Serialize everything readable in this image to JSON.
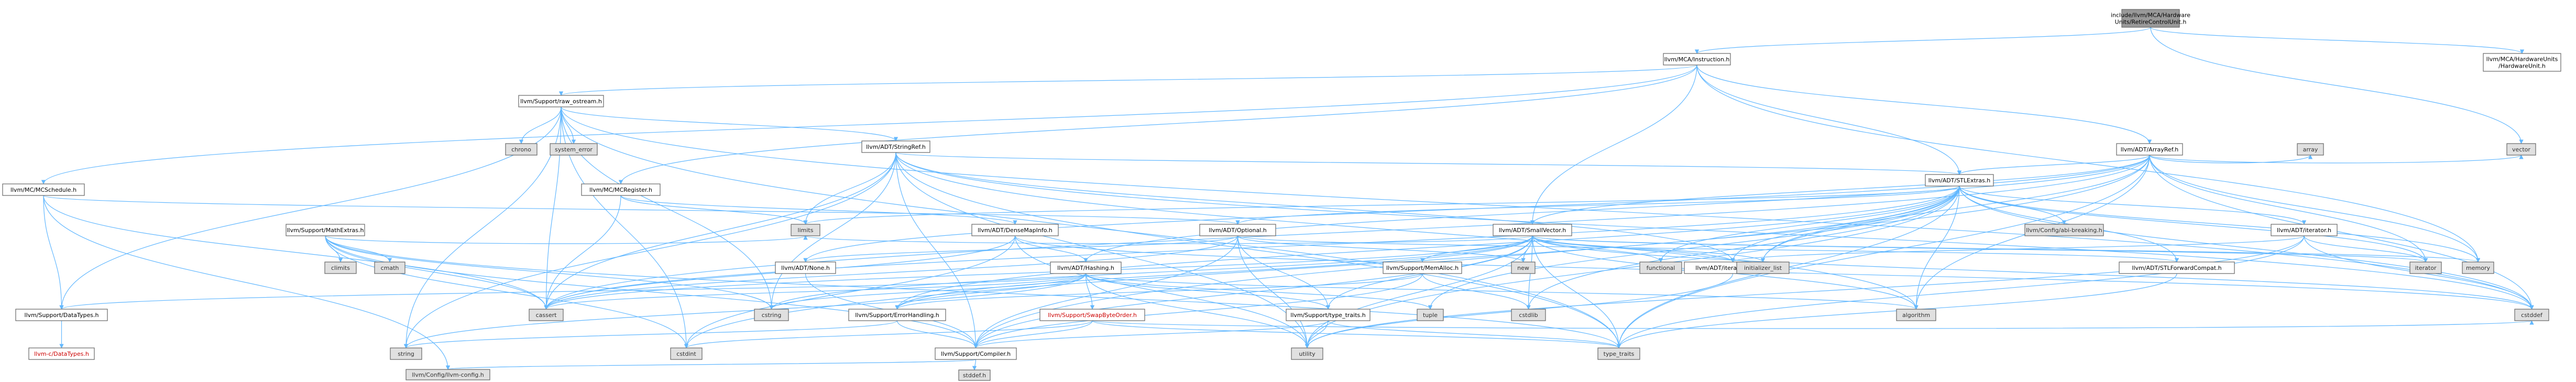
{
  "graph": {
    "kind": "include-dependency-graph",
    "colors": {
      "edge": "#63b8ff",
      "root_fill": "#999999",
      "node_fill": "#ffffff",
      "system_fill": "#e0e0e0",
      "border": "#666666",
      "red_text": "#cc0000"
    },
    "nodes": [
      {
        "id": "root",
        "lines": [
          "include/llvm/MCA/Hardware",
          "Units/RetireControlUnit.h"
        ],
        "style": "root"
      },
      {
        "id": "instruction",
        "lines": [
          "llvm/MCA/Instruction.h"
        ]
      },
      {
        "id": "hwunit",
        "lines": [
          "llvm/MCA/HardwareUnits",
          "/HardwareUnit.h"
        ]
      },
      {
        "id": "raw_ostream",
        "lines": [
          "llvm/Support/raw_ostream.h"
        ]
      },
      {
        "id": "arrayref",
        "lines": [
          "llvm/ADT/ArrayRef.h"
        ]
      },
      {
        "id": "stringref",
        "lines": [
          "llvm/ADT/StringRef.h"
        ]
      },
      {
        "id": "stlextras",
        "lines": [
          "llvm/ADT/STLExtras.h"
        ]
      },
      {
        "id": "mcschedule",
        "lines": [
          "llvm/MC/MCSchedule.h"
        ]
      },
      {
        "id": "mcregister",
        "lines": [
          "llvm/MC/MCRegister.h"
        ]
      },
      {
        "id": "smallvector",
        "lines": [
          "llvm/ADT/SmallVector.h"
        ]
      },
      {
        "id": "mathextras",
        "lines": [
          "llvm/Support/MathExtras.h"
        ]
      },
      {
        "id": "densemapinfo",
        "lines": [
          "llvm/ADT/DenseMapInfo.h"
        ]
      },
      {
        "id": "optional",
        "lines": [
          "llvm/ADT/Optional.h"
        ]
      },
      {
        "id": "iterator",
        "lines": [
          "llvm/ADT/iterator.h"
        ]
      },
      {
        "id": "none",
        "lines": [
          "llvm/ADT/None.h"
        ]
      },
      {
        "id": "hashing",
        "lines": [
          "llvm/ADT/Hashing.h"
        ]
      },
      {
        "id": "memalloc",
        "lines": [
          "llvm/Support/MemAlloc.h"
        ]
      },
      {
        "id": "iterator_range",
        "lines": [
          "llvm/ADT/iterator_range.h"
        ]
      },
      {
        "id": "stlforward",
        "lines": [
          "llvm/ADT/STLForwardCompat.h"
        ]
      },
      {
        "id": "datatypes_s",
        "lines": [
          "llvm/Support/DataTypes.h"
        ]
      },
      {
        "id": "errorhandling",
        "lines": [
          "llvm/Support/ErrorHandling.h"
        ]
      },
      {
        "id": "swapbyteorder",
        "lines": [
          "llvm/Support/SwapByteOrder.h"
        ],
        "style": "red"
      },
      {
        "id": "type_traits_s",
        "lines": [
          "llvm/Support/type_traits.h"
        ]
      },
      {
        "id": "compiler",
        "lines": [
          "llvm/Support/Compiler.h"
        ]
      },
      {
        "id": "c_datatypes",
        "lines": [
          "llvm-c/DataTypes.h"
        ],
        "style": "red"
      },
      {
        "id": "llvm_config",
        "lines": [
          "llvm/Config/llvm-config.h"
        ],
        "style": "sys"
      },
      {
        "id": "abi_breaking",
        "lines": [
          "llvm/Config/abi-breaking.h"
        ],
        "style": "sys"
      },
      {
        "id": "chrono",
        "lines": [
          "chrono"
        ],
        "style": "sys"
      },
      {
        "id": "system_error",
        "lines": [
          "system_error"
        ],
        "style": "sys"
      },
      {
        "id": "array",
        "lines": [
          "array"
        ],
        "style": "sys"
      },
      {
        "id": "vector",
        "lines": [
          "vector"
        ],
        "style": "sys"
      },
      {
        "id": "climits",
        "lines": [
          "climits"
        ],
        "style": "sys"
      },
      {
        "id": "cmath",
        "lines": [
          "cmath"
        ],
        "style": "sys"
      },
      {
        "id": "limits",
        "lines": [
          "limits"
        ],
        "style": "sys"
      },
      {
        "id": "new",
        "lines": [
          "new"
        ],
        "style": "sys"
      },
      {
        "id": "functional",
        "lines": [
          "functional"
        ],
        "style": "sys"
      },
      {
        "id": "initializer_list",
        "lines": [
          "initializer_list"
        ],
        "style": "sys"
      },
      {
        "id": "iterator_s",
        "lines": [
          "iterator"
        ],
        "style": "sys"
      },
      {
        "id": "memory",
        "lines": [
          "memory"
        ],
        "style": "sys"
      },
      {
        "id": "cstring",
        "lines": [
          "cstring"
        ],
        "style": "sys"
      },
      {
        "id": "cassert",
        "lines": [
          "cassert"
        ],
        "style": "sys"
      },
      {
        "id": "tuple",
        "lines": [
          "tuple"
        ],
        "style": "sys"
      },
      {
        "id": "cstdlib",
        "lines": [
          "cstdlib"
        ],
        "style": "sys"
      },
      {
        "id": "algorithm",
        "lines": [
          "algorithm"
        ],
        "style": "sys"
      },
      {
        "id": "string",
        "lines": [
          "string"
        ],
        "style": "sys"
      },
      {
        "id": "cstdint",
        "lines": [
          "cstdint"
        ],
        "style": "sys"
      },
      {
        "id": "utility",
        "lines": [
          "utility"
        ],
        "style": "sys"
      },
      {
        "id": "type_traits",
        "lines": [
          "type_traits"
        ],
        "style": "sys"
      },
      {
        "id": "cstddef",
        "lines": [
          "cstddef"
        ],
        "style": "sys"
      },
      {
        "id": "stddef",
        "lines": [
          "stddef.h"
        ],
        "style": "sys"
      }
    ],
    "edges": [
      [
        "root",
        "instruction"
      ],
      [
        "root",
        "hwunit"
      ],
      [
        "root",
        "vector"
      ],
      [
        "instruction",
        "raw_ostream"
      ],
      [
        "instruction",
        "arrayref"
      ],
      [
        "instruction",
        "stlextras"
      ],
      [
        "instruction",
        "smallvector"
      ],
      [
        "instruction",
        "mcregister"
      ],
      [
        "instruction",
        "mcschedule"
      ],
      [
        "instruction",
        "memory"
      ],
      [
        "raw_ostream",
        "stringref"
      ],
      [
        "raw_ostream",
        "datatypes_s"
      ],
      [
        "raw_ostream",
        "cassert"
      ],
      [
        "raw_ostream",
        "chrono"
      ],
      [
        "raw_ostream",
        "cstddef"
      ],
      [
        "raw_ostream",
        "cstdint"
      ],
      [
        "raw_ostream",
        "cstring"
      ],
      [
        "raw_ostream",
        "string"
      ],
      [
        "raw_ostream",
        "system_error"
      ],
      [
        "raw_ostream",
        "type_traits"
      ],
      [
        "stringref",
        "stlextras"
      ],
      [
        "stringref",
        "iterator_range"
      ],
      [
        "stringref",
        "compiler"
      ],
      [
        "stringref",
        "algorithm"
      ],
      [
        "stringref",
        "cassert"
      ],
      [
        "stringref",
        "cstddef"
      ],
      [
        "stringref",
        "cstring"
      ],
      [
        "stringref",
        "limits"
      ],
      [
        "stringref",
        "string"
      ],
      [
        "stringref",
        "type_traits"
      ],
      [
        "stringref",
        "utility"
      ],
      [
        "arrayref",
        "hashing"
      ],
      [
        "arrayref",
        "none"
      ],
      [
        "arrayref",
        "smallvector"
      ],
      [
        "arrayref",
        "stlextras"
      ],
      [
        "arrayref",
        "compiler"
      ],
      [
        "arrayref",
        "algorithm"
      ],
      [
        "arrayref",
        "array"
      ],
      [
        "arrayref",
        "cassert"
      ],
      [
        "arrayref",
        "cstddef"
      ],
      [
        "arrayref",
        "initializer_list"
      ],
      [
        "arrayref",
        "iterator_s"
      ],
      [
        "arrayref",
        "memory"
      ],
      [
        "arrayref",
        "type_traits"
      ],
      [
        "arrayref",
        "vector"
      ],
      [
        "stlextras",
        "optional"
      ],
      [
        "stlextras",
        "stlforward"
      ],
      [
        "stlextras",
        "iterator"
      ],
      [
        "stlextras",
        "iterator_range"
      ],
      [
        "stlextras",
        "abi_breaking"
      ],
      [
        "stlextras",
        "errorhandling"
      ],
      [
        "stlextras",
        "algorithm"
      ],
      [
        "stlextras",
        "cassert"
      ],
      [
        "stlextras",
        "cstddef"
      ],
      [
        "stlextras",
        "cstdint"
      ],
      [
        "stlextras",
        "cstdlib"
      ],
      [
        "stlextras",
        "functional"
      ],
      [
        "stlextras",
        "initializer_list"
      ],
      [
        "stlextras",
        "iterator_s"
      ],
      [
        "stlextras",
        "limits"
      ],
      [
        "stlextras",
        "memory"
      ],
      [
        "stlextras",
        "tuple"
      ],
      [
        "stlextras",
        "type_traits"
      ],
      [
        "stlextras",
        "utility"
      ],
      [
        "smallvector",
        "iterator_range"
      ],
      [
        "smallvector",
        "compiler"
      ],
      [
        "smallvector",
        "errorhandling"
      ],
      [
        "smallvector",
        "memalloc"
      ],
      [
        "smallvector",
        "type_traits_s"
      ],
      [
        "smallvector",
        "algorithm"
      ],
      [
        "smallvector",
        "cassert"
      ],
      [
        "smallvector",
        "cstddef"
      ],
      [
        "smallvector",
        "cstdlib"
      ],
      [
        "smallvector",
        "cstring"
      ],
      [
        "smallvector",
        "functional"
      ],
      [
        "smallvector",
        "initializer_list"
      ],
      [
        "smallvector",
        "iterator_s"
      ],
      [
        "smallvector",
        "limits"
      ],
      [
        "smallvector",
        "memory"
      ],
      [
        "smallvector",
        "new"
      ],
      [
        "smallvector",
        "type_traits"
      ],
      [
        "smallvector",
        "utility"
      ],
      [
        "mcschedule",
        "datatypes_s"
      ],
      [
        "mcschedule",
        "llvm_config"
      ],
      [
        "mcschedule",
        "cassert"
      ],
      [
        "mcschedule",
        "optional"
      ],
      [
        "mcregister",
        "densemapinfo"
      ],
      [
        "mcregister",
        "cassert"
      ],
      [
        "mcregister",
        "limits"
      ],
      [
        "densemapinfo",
        "hashing"
      ],
      [
        "densemapinfo",
        "cassert"
      ],
      [
        "densemapinfo",
        "cstddef"
      ],
      [
        "densemapinfo",
        "cstdint"
      ],
      [
        "densemapinfo",
        "utility"
      ],
      [
        "hashing",
        "errorhandling"
      ],
      [
        "hashing",
        "swapbyteorder"
      ],
      [
        "hashing",
        "type_traits_s"
      ],
      [
        "hashing",
        "algorithm"
      ],
      [
        "hashing",
        "cassert"
      ],
      [
        "hashing",
        "cstring"
      ],
      [
        "hashing",
        "string"
      ],
      [
        "hashing",
        "tuple"
      ],
      [
        "hashing",
        "utility"
      ],
      [
        "hashing",
        "datatypes_s"
      ],
      [
        "optional",
        "none"
      ],
      [
        "optional",
        "stlforward"
      ],
      [
        "optional",
        "compiler"
      ],
      [
        "optional",
        "type_traits_s"
      ],
      [
        "optional",
        "cassert"
      ],
      [
        "optional",
        "new"
      ],
      [
        "optional",
        "utility"
      ],
      [
        "iterator",
        "iterator_range"
      ],
      [
        "iterator",
        "cstddef"
      ],
      [
        "iterator",
        "iterator_s"
      ],
      [
        "iterator",
        "type_traits"
      ],
      [
        "iterator",
        "utility"
      ],
      [
        "mathextras",
        "compiler"
      ],
      [
        "mathextras",
        "cassert"
      ],
      [
        "mathextras",
        "climits"
      ],
      [
        "mathextras",
        "cmath"
      ],
      [
        "mathextras",
        "cstdint"
      ],
      [
        "mathextras",
        "cstring"
      ],
      [
        "mathextras",
        "limits"
      ],
      [
        "mathextras",
        "type_traits"
      ],
      [
        "memalloc",
        "compiler"
      ],
      [
        "memalloc",
        "errorhandling"
      ],
      [
        "memalloc",
        "cstdlib"
      ],
      [
        "errorhandling",
        "compiler"
      ],
      [
        "errorhandling",
        "string"
      ],
      [
        "swapbyteorder",
        "compiler"
      ],
      [
        "swapbyteorder",
        "cstddef"
      ],
      [
        "swapbyteorder",
        "cstdint"
      ],
      [
        "swapbyteorder",
        "type_traits"
      ],
      [
        "type_traits_s",
        "compiler"
      ],
      [
        "type_traits_s",
        "type_traits"
      ],
      [
        "type_traits_s",
        "utility"
      ],
      [
        "compiler",
        "llvm_config"
      ],
      [
        "compiler",
        "stddef"
      ],
      [
        "datatypes_s",
        "c_datatypes"
      ],
      [
        "stlforward",
        "type_traits"
      ],
      [
        "iterator_range",
        "utility"
      ],
      [
        "none",
        "compiler"
      ]
    ]
  }
}
